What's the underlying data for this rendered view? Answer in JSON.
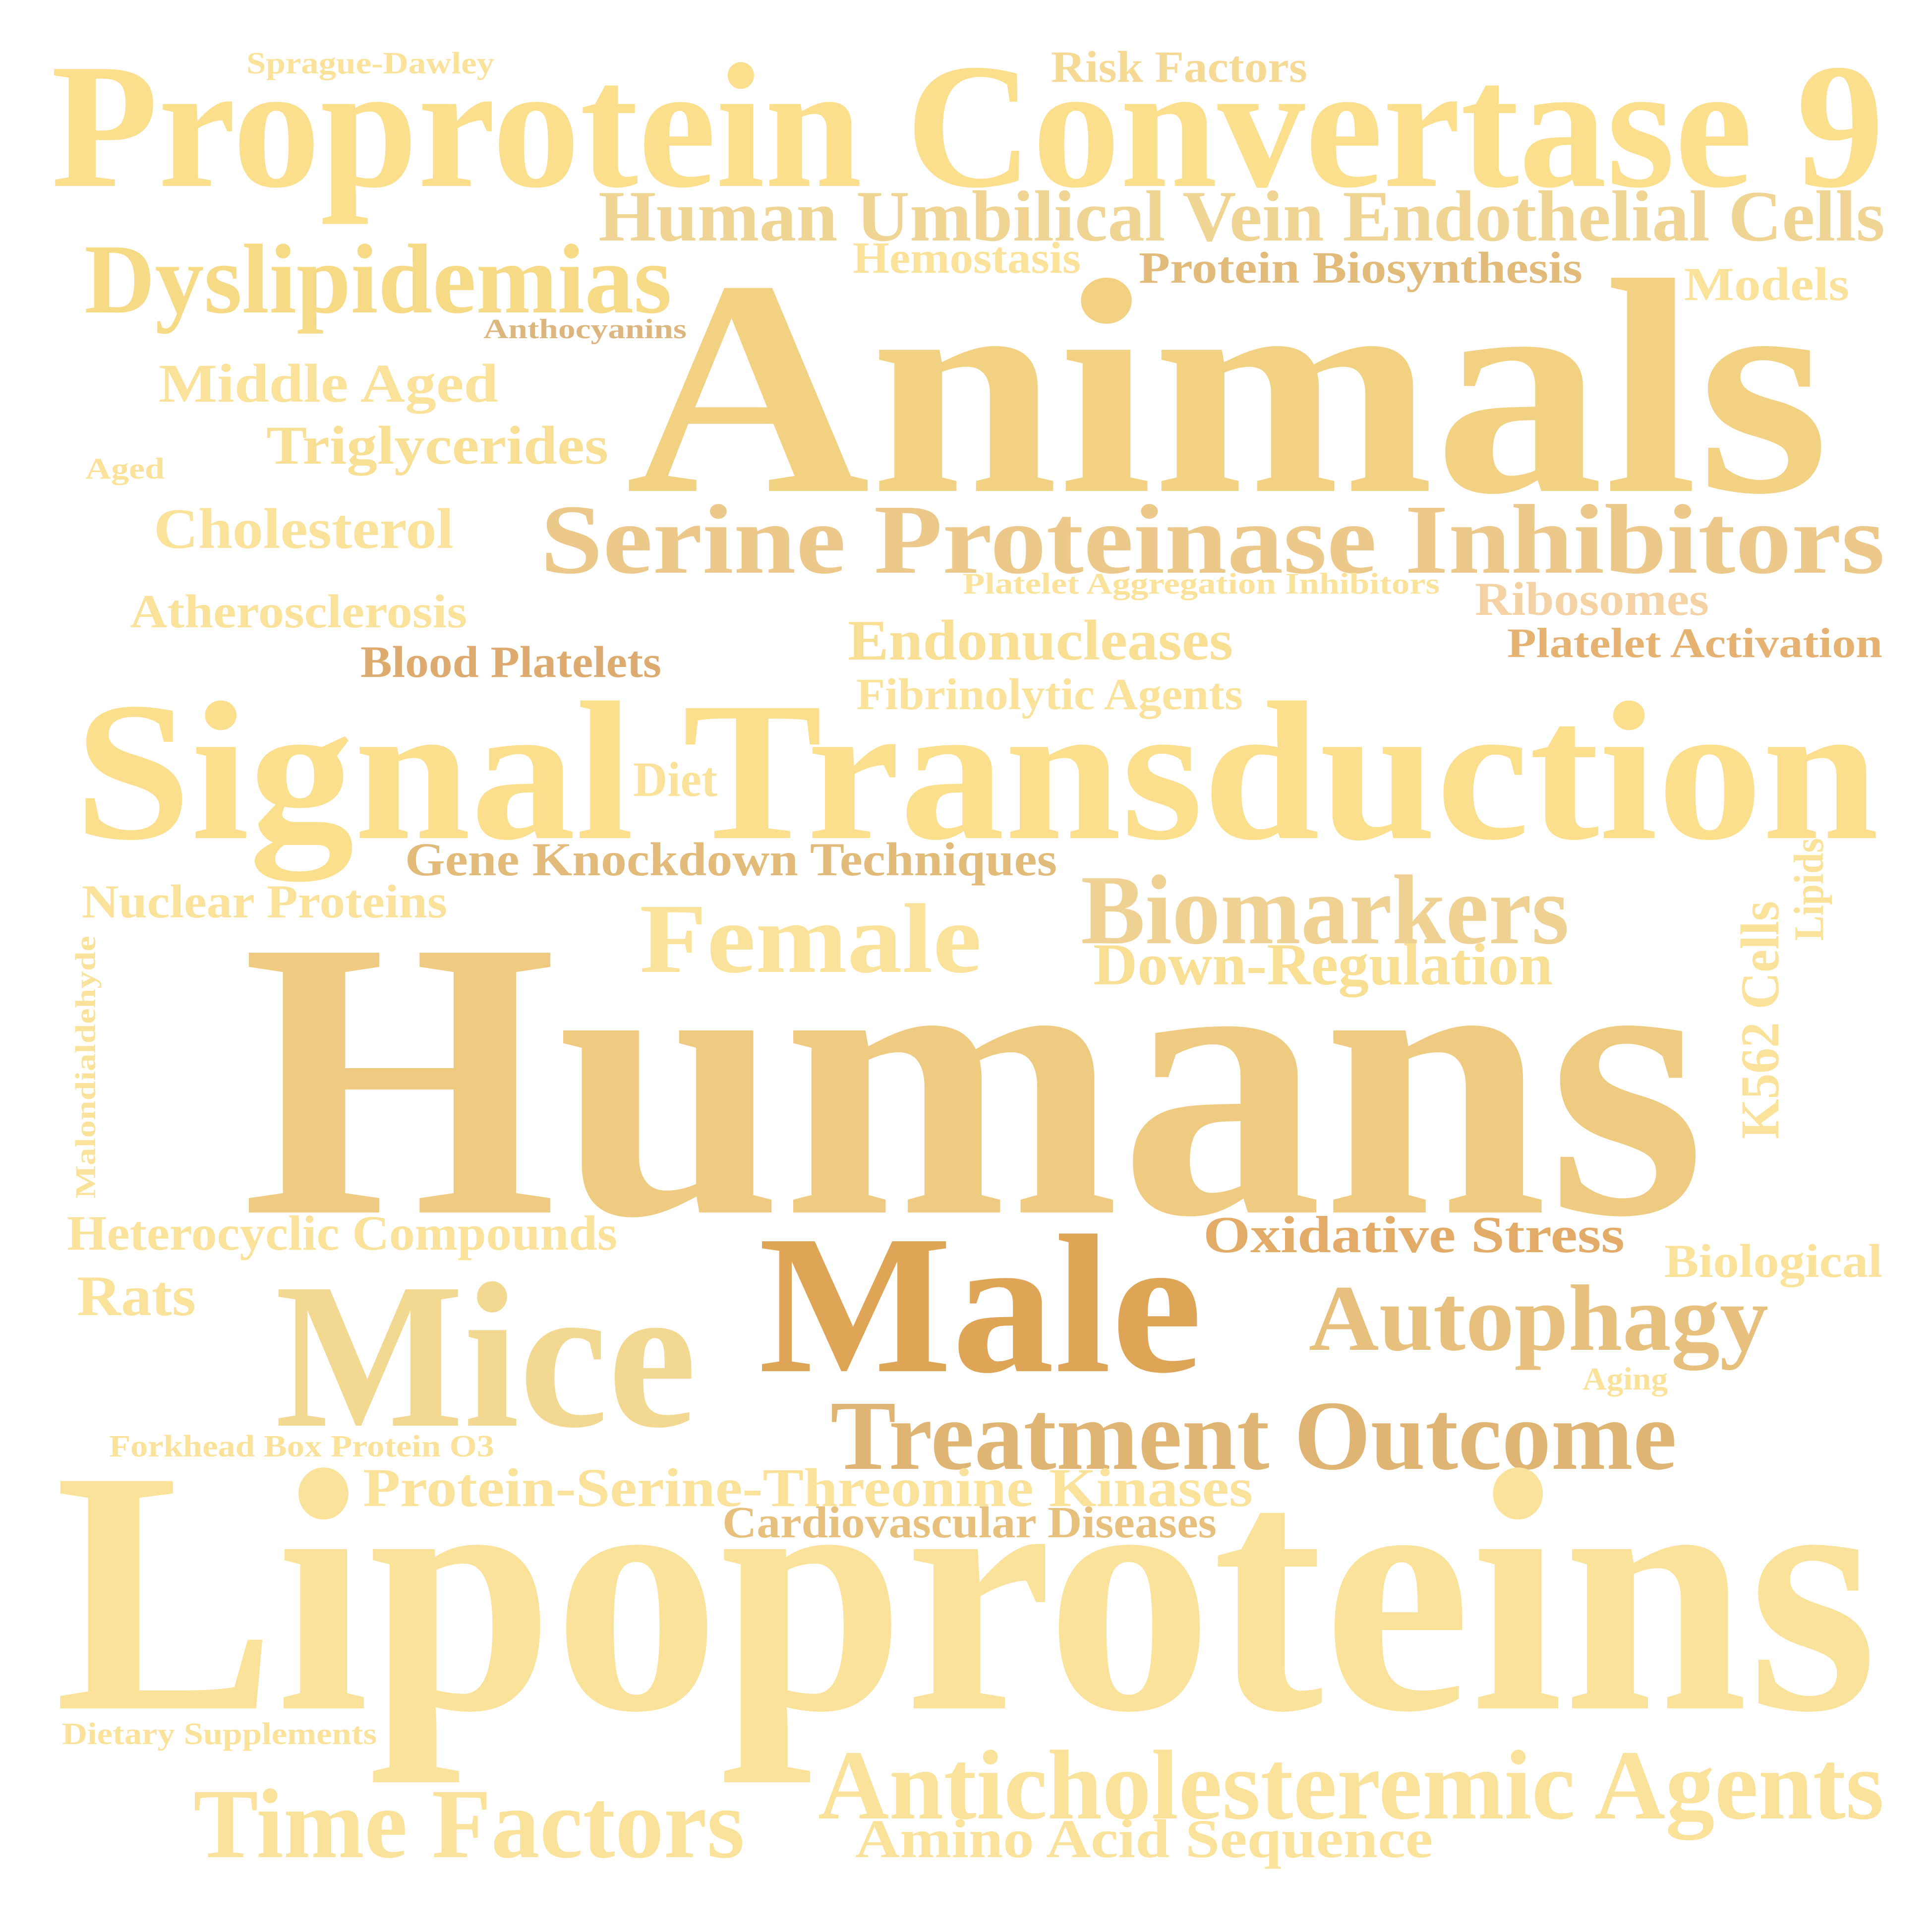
{
  "words": [
    {
      "text": "Proprotein Convertase 9",
      "color": "#fbdf8c"
    },
    {
      "text": "Sprague-Dawley",
      "color": "#fbe29a"
    },
    {
      "text": "Risk Factors",
      "color": "#f5d995"
    },
    {
      "text": "Human Umbilical Vein Endothelial Cells",
      "color": "#efd493"
    },
    {
      "text": "Hemostasis",
      "color": "#fbe29a"
    },
    {
      "text": "Protein Biosynthesis",
      "color": "#e2ba79"
    },
    {
      "text": "Models",
      "color": "#fbe29a"
    },
    {
      "text": "Dyslipidemias",
      "color": "#f7da86"
    },
    {
      "text": "Anthocyanins",
      "color": "#ddb67f"
    },
    {
      "text": "Animals",
      "color": "#f2d183"
    },
    {
      "text": "Middle Aged",
      "color": "#fbe29a"
    },
    {
      "text": "Triglycerides",
      "color": "#f9df94"
    },
    {
      "text": "Aged",
      "color": "#fbe29a"
    },
    {
      "text": "Cholesterol",
      "color": "#fbe29a"
    },
    {
      "text": "Serine Proteinase Inhibitors",
      "color": "#ecc98b"
    },
    {
      "text": "Platelet Aggregation Inhibitors",
      "color": "#fbe29a"
    },
    {
      "text": "Ribosomes",
      "color": "#f4d2a3"
    },
    {
      "text": "Atherosclerosis",
      "color": "#fbe29a"
    },
    {
      "text": "Blood Platelets",
      "color": "#ddab70"
    },
    {
      "text": "Endonucleases",
      "color": "#f9df94"
    },
    {
      "text": "Platelet Activation",
      "color": "#e5b272"
    },
    {
      "text": "Fibrinolytic Agents",
      "color": "#fbe29a"
    },
    {
      "text": "Signal Transduction",
      "color": "#fbdf8c"
    },
    {
      "text": "Diet",
      "color": "#fbe29a"
    },
    {
      "text": "Gene Knockdown Techniques",
      "color": "#e2ba79"
    },
    {
      "text": "Nuclear Proteins",
      "color": "#fbe29a"
    },
    {
      "text": "Biomarkers",
      "color": "#efd193"
    },
    {
      "text": "Female",
      "color": "#fbe29a"
    },
    {
      "text": "Down-Regulation",
      "color": "#f9df94"
    },
    {
      "text": "Lipids",
      "color": "#fbe29a"
    },
    {
      "text": "K562 Cells",
      "color": "#fbe29a"
    },
    {
      "text": "Malondialdehyde",
      "color": "#fbe29a"
    },
    {
      "text": "Humans",
      "color": "#efcb82"
    },
    {
      "text": "Heterocyclic Compounds",
      "color": "#fbe29a"
    },
    {
      "text": "Oxidative Stress",
      "color": "#e2ab67"
    },
    {
      "text": "Biological",
      "color": "#fbe29a"
    },
    {
      "text": "Rats",
      "color": "#fbe29a"
    },
    {
      "text": "Male",
      "color": "#dea557"
    },
    {
      "text": "Mice",
      "color": "#f3d891"
    },
    {
      "text": "Autophagy",
      "color": "#e7c07e"
    },
    {
      "text": "Aging",
      "color": "#fbe29a"
    },
    {
      "text": "Treatment Outcome",
      "color": "#e0b573"
    },
    {
      "text": "Forkhead Box Protein O3",
      "color": "#fbe29a"
    },
    {
      "text": "Protein-Serine-Threonine Kinases",
      "color": "#fbe29a"
    },
    {
      "text": "Cardiovascular Diseases",
      "color": "#e7c07e"
    },
    {
      "text": "Lipoproteins",
      "color": "#fbe29a"
    },
    {
      "text": "Dietary Supplements",
      "color": "#fbe29a"
    },
    {
      "text": "Anticholesteremic Agents",
      "color": "#fbe29a"
    },
    {
      "text": "Time Factors",
      "color": "#fbe29a"
    },
    {
      "text": "Amino Acid Sequence",
      "color": "#fbe29a"
    }
  ]
}
